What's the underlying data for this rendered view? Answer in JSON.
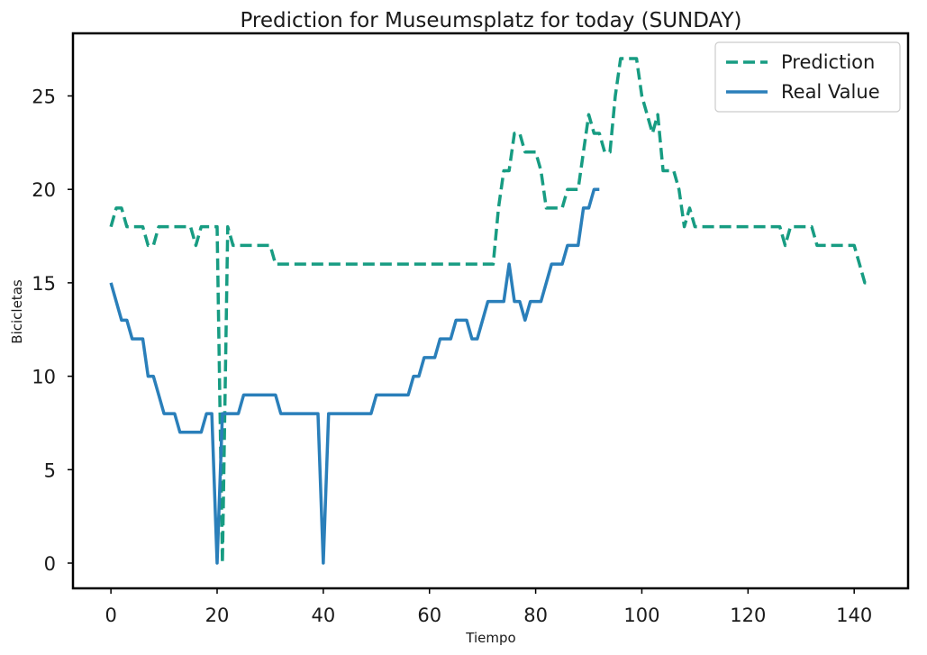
{
  "chart_data": {
    "type": "line",
    "title": "Prediction for Museumsplatz for today (SUNDAY)",
    "xlabel": "Tiempo",
    "ylabel": "Bicicletas",
    "xlim": [
      -7.15,
      150.15
    ],
    "ylim": [
      -1.35,
      28.35
    ],
    "xticks": [
      0,
      20,
      40,
      60,
      80,
      100,
      120,
      140
    ],
    "yticks": [
      0,
      5,
      10,
      15,
      20,
      25
    ],
    "grid": false,
    "legend_position": "top-right",
    "series": [
      {
        "name": "Prediction",
        "color": "#179c82",
        "style": "dashed",
        "values": [
          18,
          19,
          19,
          18,
          18,
          18,
          18,
          17,
          17,
          18,
          18,
          18,
          18,
          18,
          18,
          18,
          17,
          18,
          18,
          18,
          18,
          0,
          18,
          17,
          17,
          17,
          17,
          17,
          17,
          17,
          17,
          16,
          16,
          16,
          16,
          16,
          16,
          16,
          16,
          16,
          16,
          16,
          16,
          16,
          16,
          16,
          16,
          16,
          16,
          16,
          16,
          16,
          16,
          16,
          16,
          16,
          16,
          16,
          16,
          16,
          16,
          16,
          16,
          16,
          16,
          16,
          16,
          16,
          16,
          16,
          16,
          16,
          16,
          19,
          21,
          21,
          23,
          23,
          22,
          22,
          22,
          21,
          19,
          19,
          19,
          19,
          20,
          20,
          20,
          22,
          24,
          23,
          23,
          22,
          22,
          25,
          27,
          27,
          27,
          27,
          25,
          24,
          23,
          24,
          21,
          21,
          21,
          20,
          18,
          19,
          18,
          18,
          18,
          18,
          18,
          18,
          18,
          18,
          18,
          18,
          18,
          18,
          18,
          18,
          18,
          18,
          18,
          17,
          18,
          18,
          18,
          18,
          18,
          17,
          17,
          17,
          17,
          17,
          17,
          17,
          17,
          16,
          15,
          15
        ]
      },
      {
        "name": "Real Value",
        "color": "#2a7fba",
        "style": "solid",
        "values": [
          15,
          14,
          13,
          13,
          12,
          12,
          12,
          10,
          10,
          9,
          8,
          8,
          8,
          7,
          7,
          7,
          7,
          7,
          8,
          8,
          0,
          8,
          8,
          8,
          8,
          9,
          9,
          9,
          9,
          9,
          9,
          9,
          8,
          8,
          8,
          8,
          8,
          8,
          8,
          8,
          0,
          8,
          8,
          8,
          8,
          8,
          8,
          8,
          8,
          8,
          9,
          9,
          9,
          9,
          9,
          9,
          9,
          10,
          10,
          11,
          11,
          11,
          12,
          12,
          12,
          13,
          13,
          13,
          12,
          12,
          13,
          14,
          14,
          14,
          14,
          16,
          14,
          14,
          13,
          14,
          14,
          14,
          15,
          16,
          16,
          16,
          17,
          17,
          17,
          19,
          19,
          20,
          20
        ]
      }
    ]
  }
}
